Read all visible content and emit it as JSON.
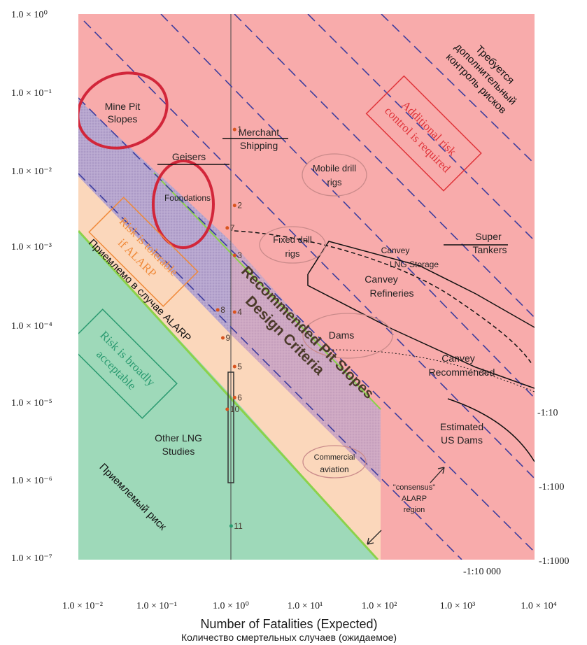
{
  "chart_data": {
    "type": "fn-curve",
    "title": "",
    "xlabel": "Number of Fatalities (Expected)",
    "xlabel_translation": "Количество смертельных случаев (ожидаемое)",
    "ylabel": "",
    "x_scale": "log",
    "y_scale": "log",
    "xlim": [
      0.01,
      10000
    ],
    "ylim": [
      1e-07,
      1
    ],
    "x_ticks": [
      "1.0 × 10⁻²",
      "1.0 × 10⁻¹",
      "1.0 × 10⁰",
      "1.0 × 10¹",
      "1.0 × 10²",
      "1.0 × 10³",
      "1.0 × 10⁴"
    ],
    "y_ticks": [
      "1.0 × 10⁰",
      "1.0 × 10⁻¹",
      "1.0 × 10⁻²",
      "1.0 × 10⁻³",
      "1.0 × 10⁻⁴",
      "1.0 × 10⁻⁵",
      "1.0 × 10⁻⁶",
      "1.0 × 10⁻⁷"
    ],
    "region_colors": {
      "intolerable": "#f8abab",
      "alarp": "#fbd7bb",
      "acceptable": "#9ed9b9",
      "pit_slope_criteria": "#b7a6cf",
      "boundary_line": "#8bd24a",
      "dashed_lines": "#3d3d9e",
      "circles": "#d2263a"
    },
    "region_labels": {
      "intolerable": [
        "Additional risk",
        "control is required"
      ],
      "alarp": [
        "Risk is tolerable",
        "if ALARP"
      ],
      "acceptable": [
        "Risk is broadly",
        "acceptable"
      ]
    },
    "russian_labels": {
      "intolerable": [
        "Требуется",
        "дополнительный",
        "контроль рисков"
      ],
      "alarp": "Приемлемо в случае ALARP",
      "acceptable": "Приемлемый риск"
    },
    "criteria_label": [
      "Recommended Pit Slopes",
      "Design Criteria"
    ],
    "iso_risk_labels": [
      "-1:10",
      "-1:100",
      "-1:1000",
      "-1:10 000"
    ],
    "alarp_region_label": [
      "\"consensus\"",
      "ALARP",
      "region"
    ],
    "activities": [
      {
        "label": [
          "Mine Pit",
          "Slopes"
        ],
        "x": 0.018,
        "y": 0.035
      },
      {
        "label": [
          "Geisers"
        ],
        "x": 0.3,
        "y": 0.008
      },
      {
        "label": [
          "Foundations"
        ],
        "x": 0.3,
        "y": 0.0025
      },
      {
        "label": [
          "Merchant",
          "Shipping"
        ],
        "x": 3,
        "y": 0.03
      },
      {
        "label": [
          "Mobile drill",
          "rigs"
        ],
        "x": 40,
        "y": 0.007
      },
      {
        "label": [
          "Fixed drill",
          "rigs"
        ],
        "x": 6,
        "y": 0.0009
      },
      {
        "label": [
          "Super",
          "Tankers"
        ],
        "x": 3000,
        "y": 0.001
      },
      {
        "label": [
          "Canvey",
          "LNG Storage"
        ],
        "x": 300,
        "y": 0.0009
      },
      {
        "label": [
          "Canvey",
          "Refineries"
        ],
        "x": 150,
        "y": 0.0003
      },
      {
        "label": [
          "Dams"
        ],
        "x": 20,
        "y": 6e-05
      },
      {
        "label": [
          "Canvey",
          "Recommended"
        ],
        "x": 1500,
        "y": 3e-05
      },
      {
        "label": [
          "Estimated",
          "US Dams"
        ],
        "x": 1500,
        "y": 4e-06
      },
      {
        "label": [
          "Other LNG",
          "Studies"
        ],
        "x": 0.15,
        "y": 2.5e-06
      },
      {
        "label": [
          "Commercial",
          "aviation"
        ],
        "x": 30,
        "y": 8e-07
      }
    ],
    "numbered_points": [
      {
        "label": "1",
        "x": 1.0,
        "y": 0.033
      },
      {
        "label": "2",
        "x": 1.0,
        "y": 0.0035
      },
      {
        "label": "3",
        "x": 1.0,
        "y": 0.0008
      },
      {
        "label": "4",
        "x": 1.0,
        "y": 0.00015
      },
      {
        "label": "5",
        "x": 1.0,
        "y": 3e-05
      },
      {
        "label": "6",
        "x": 1.0,
        "y": 1.2e-05
      },
      {
        "label": "7",
        "x": 0.8,
        "y": 0.0018
      },
      {
        "label": "8",
        "x": 0.6,
        "y": 0.00016
      },
      {
        "label": "9",
        "x": 0.7,
        "y": 7e-05
      },
      {
        "label": "10",
        "x": 0.8,
        "y": 8.5e-06
      },
      {
        "label": "11",
        "x": 0.9,
        "y": 2.7e-07
      }
    ]
  }
}
